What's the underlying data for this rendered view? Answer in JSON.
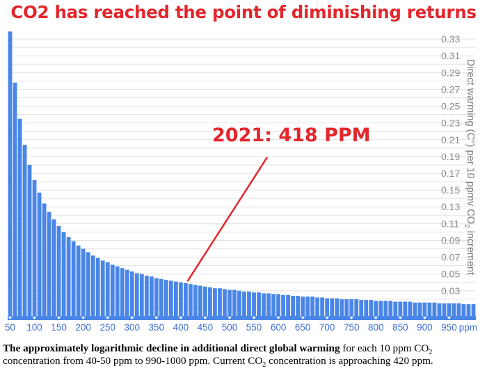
{
  "title": "CO2 has reached the point of diminishing returns",
  "chart_data": {
    "type": "bar",
    "title": "CO2 has reached the point of diminishing returns",
    "x_label": "ppm",
    "y_label": "Direct warming (C°) per 10 ppmv CO2 increment",
    "y_label_parts": {
      "before": "Direct warming (C°) per 10 ppmv CO",
      "sub": "2",
      "after": " increment"
    },
    "ylim": [
      0.0,
      0.345
    ],
    "y_ticks": [
      "0.33",
      "0.31",
      "0.29",
      "0.27",
      "0.25",
      "0.23",
      "0.21",
      "0.19",
      "0.17",
      "0.15",
      "0.13",
      "0.11",
      "0.09",
      "0.07",
      "0.05",
      "0.03"
    ],
    "x_ticks": [
      "50",
      "100",
      "150",
      "200",
      "250",
      "300",
      "350",
      "400",
      "450",
      "500",
      "550",
      "600",
      "650",
      "700",
      "750",
      "800",
      "850",
      "900",
      "950"
    ],
    "x_unit": "ppm",
    "categories": [
      50,
      60,
      70,
      80,
      90,
      100,
      110,
      120,
      130,
      140,
      150,
      160,
      170,
      180,
      190,
      200,
      210,
      220,
      230,
      240,
      250,
      260,
      270,
      280,
      290,
      300,
      310,
      320,
      330,
      340,
      350,
      360,
      370,
      380,
      390,
      400,
      410,
      420,
      430,
      440,
      450,
      460,
      470,
      480,
      490,
      500,
      510,
      520,
      530,
      540,
      550,
      560,
      570,
      580,
      590,
      600,
      610,
      620,
      630,
      640,
      650,
      660,
      670,
      680,
      690,
      700,
      710,
      720,
      730,
      740,
      750,
      760,
      770,
      780,
      790,
      800,
      810,
      820,
      830,
      840,
      850,
      860,
      870,
      880,
      890,
      900,
      910,
      920,
      930,
      940,
      950,
      960,
      970,
      980,
      990,
      1000
    ],
    "values": [
      0.339,
      0.278,
      0.235,
      0.204,
      0.18,
      0.162,
      0.147,
      0.134,
      0.124,
      0.115,
      0.107,
      0.1,
      0.094,
      0.089,
      0.084,
      0.08,
      0.076,
      0.072,
      0.069,
      0.066,
      0.064,
      0.061,
      0.059,
      0.057,
      0.055,
      0.053,
      0.051,
      0.05,
      0.048,
      0.047,
      0.045,
      0.044,
      0.043,
      0.042,
      0.041,
      0.04,
      0.039,
      0.038,
      0.037,
      0.036,
      0.035,
      0.034,
      0.033,
      0.033,
      0.032,
      0.031,
      0.031,
      0.03,
      0.029,
      0.029,
      0.028,
      0.028,
      0.027,
      0.027,
      0.026,
      0.026,
      0.025,
      0.025,
      0.024,
      0.024,
      0.023,
      0.023,
      0.023,
      0.022,
      0.022,
      0.021,
      0.021,
      0.021,
      0.02,
      0.02,
      0.02,
      0.02,
      0.019,
      0.019,
      0.019,
      0.018,
      0.018,
      0.018,
      0.018,
      0.017,
      0.017,
      0.017,
      0.017,
      0.016,
      0.016,
      0.016,
      0.016,
      0.016,
      0.015,
      0.015,
      0.015,
      0.015,
      0.015,
      0.014,
      0.014,
      0.014
    ],
    "bar_color": "#4a86e8",
    "annotation": {
      "text": "2021: 418 PPM",
      "points_to_x": 418,
      "color": "#e3262d"
    },
    "grid": true
  },
  "caption": {
    "bold": "The approximately logarithmic decline in additional direct global warming",
    "part1": " for each 10 ppm CO",
    "sub1": "2",
    "part2": " concentration from 40-50 ppm to 990-1000 ppm. Current CO",
    "sub2": "2",
    "part3": " concentration is approaching 420 ppm."
  }
}
